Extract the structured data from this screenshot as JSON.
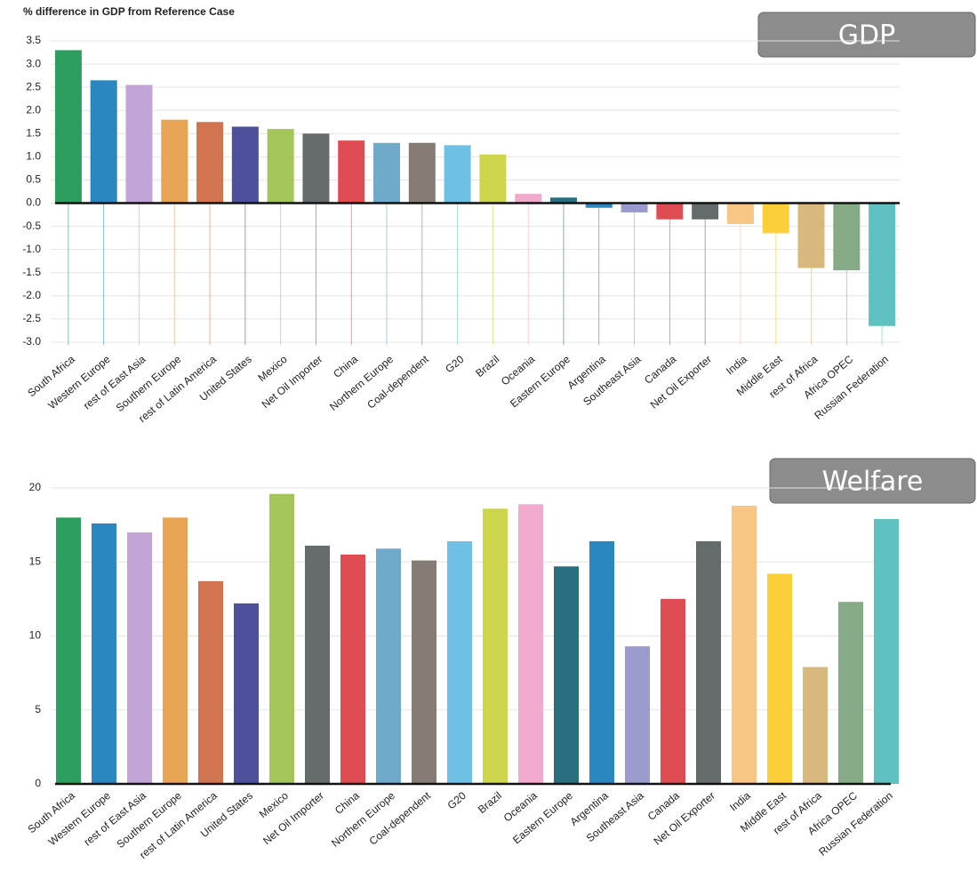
{
  "chart_data": [
    {
      "type": "bar",
      "title": "% difference in GDP from Reference Case",
      "badge": "GDP",
      "categories": [
        "South Africa",
        "Western Europe",
        "rest of East Asia",
        "Southern Europe",
        "rest of Latin America",
        "United States",
        "Mexico",
        "Net Oil Importer",
        "China",
        "Northern Europe",
        "Coal-dependent",
        "G20",
        "Brazil",
        "Oceania",
        "Eastern Europe",
        "Argentina",
        "Southeast Asia",
        "Canada",
        "Net Oil Exporter",
        "India",
        "Middle East",
        "rest of Africa",
        "Africa OPEC",
        "Russian Federation"
      ],
      "values": [
        3.3,
        2.65,
        2.55,
        1.8,
        1.75,
        1.65,
        1.6,
        1.5,
        1.35,
        1.3,
        1.3,
        1.25,
        1.05,
        0.2,
        0.12,
        -0.1,
        -0.2,
        -0.35,
        -0.35,
        -0.45,
        -0.65,
        -1.4,
        -1.45,
        -2.65
      ],
      "colors": [
        "#2e9e5e",
        "#2a87bf",
        "#c2a5d6",
        "#e8a455",
        "#d07550",
        "#4f509c",
        "#a3c55a",
        "#656a6c",
        "#e04c54",
        "#71a9cb",
        "#847c72",
        "#6ec0e4",
        "#cdd64a",
        "#f1a9cc",
        "#2a6f80",
        "#2a87bf",
        "#9a9acc",
        "#e04c54",
        "#656a6c",
        "#f7c684",
        "#fbcf3a",
        "#d9b87e",
        "#86aa85",
        "#5fc2c0"
      ],
      "ylim": [
        -3.1,
        3.6
      ],
      "yticks": [
        -2.5,
        {
          "value": -3,
          "label": "-3.0"
        },
        {
          "value": -2,
          "label": "-2.0"
        },
        -1.5,
        {
          "value": -1,
          "label": "-1.0"
        },
        -0.5,
        {
          "value": 0,
          "label": "0.0"
        },
        0.5,
        {
          "value": 1,
          "label": "1.0"
        },
        1.5,
        {
          "value": 2,
          "label": "2.0"
        },
        2.5,
        {
          "value": 3,
          "label": "3.0"
        },
        3.5
      ],
      "grid": true
    },
    {
      "type": "bar",
      "badge": "Welfare",
      "categories": [
        "South Africa",
        "Western Europe",
        "rest of East Asia",
        "Southern Europe",
        "rest of Latin America",
        "United States",
        "Mexico",
        "Net Oil Importer",
        "China",
        "Northern Europe",
        "Coal-dependent",
        "G20",
        "Brazil",
        "Oceania",
        "Eastern Europe",
        "Argentina",
        "Southeast Asia",
        "Canada",
        "Net Oil Exporter",
        "India",
        "Middle East",
        "rest of Africa",
        "Africa OPEC",
        "Russian Federation"
      ],
      "values": [
        18,
        17.6,
        17,
        18,
        13.7,
        12.2,
        19.6,
        16.1,
        15.5,
        15.9,
        15.1,
        16.4,
        18.6,
        18.9,
        14.7,
        16.4,
        9.3,
        12.5,
        16.4,
        18.8,
        14.2,
        7.9,
        12.3,
        17.9
      ],
      "colors": [
        "#2e9e5e",
        "#2a87bf",
        "#c2a5d6",
        "#e8a455",
        "#d07550",
        "#4f509c",
        "#a3c55a",
        "#656a6c",
        "#e04c54",
        "#71a9cb",
        "#847c72",
        "#6ec0e4",
        "#cdd64a",
        "#f1a9cc",
        "#2a6f80",
        "#2a87bf",
        "#9a9acc",
        "#e04c54",
        "#656a6c",
        "#f7c684",
        "#fbcf3a",
        "#d9b87e",
        "#86aa85",
        "#5fc2c0"
      ],
      "ylim": [
        0,
        20.5
      ],
      "yticks": [
        0,
        5,
        10,
        15,
        20
      ],
      "grid": true
    }
  ]
}
